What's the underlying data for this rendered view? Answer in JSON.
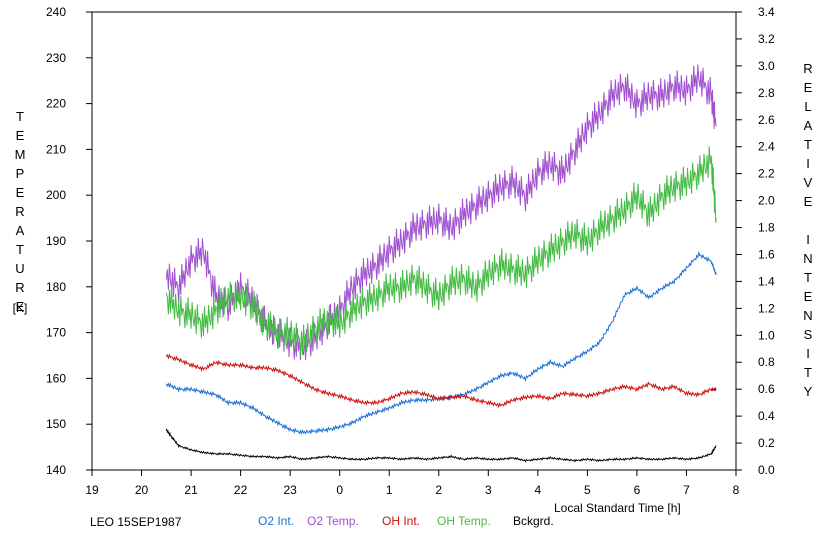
{
  "chart_data": {
    "type": "line",
    "title": "",
    "xlabel": "Local Standard Time [h]",
    "ylabel_left": "TEMPERATURE",
    "ylabel_left_unit": "[K]",
    "ylabel_right": "RELATIVE INTENSITY",
    "x_tick_labels": [
      "19",
      "20",
      "21",
      "22",
      "23",
      "0",
      "1",
      "2",
      "3",
      "4",
      "5",
      "6",
      "7",
      "8"
    ],
    "xlim": [
      19,
      32
    ],
    "ylim_left": [
      140,
      240
    ],
    "yticks_left": [
      140,
      150,
      160,
      170,
      180,
      190,
      200,
      210,
      220,
      230,
      240
    ],
    "ylim_right": [
      0,
      3.4
    ],
    "yticks_right": [
      "0.0",
      "0.2",
      "0.4",
      "0.6",
      "0.8",
      "1.0",
      "1.2",
      "1.4",
      "1.6",
      "1.8",
      "2.0",
      "2.2",
      "2.4",
      "2.6",
      "2.8",
      "3.0",
      "3.2",
      "3.4"
    ],
    "grid": false,
    "legend_position": "bottom",
    "series": [
      {
        "name": "O2 Int.",
        "axis": "right",
        "color": "#1a6fd4",
        "x": [
          20.5,
          20.75,
          21,
          21.25,
          21.5,
          21.75,
          22,
          22.25,
          22.5,
          22.75,
          23,
          23.25,
          23.5,
          23.75,
          24,
          24.25,
          24.5,
          24.75,
          25,
          25.25,
          25.5,
          25.75,
          26,
          26.25,
          26.5,
          26.75,
          27,
          27.25,
          27.5,
          27.75,
          28,
          28.25,
          28.5,
          28.75,
          29,
          29.25,
          29.5,
          29.75,
          30,
          30.25,
          30.5,
          30.75,
          31,
          31.25,
          31.5,
          31.6
        ],
        "values": [
          0.64,
          0.6,
          0.6,
          0.58,
          0.56,
          0.5,
          0.5,
          0.46,
          0.4,
          0.35,
          0.3,
          0.28,
          0.29,
          0.3,
          0.32,
          0.35,
          0.4,
          0.43,
          0.46,
          0.5,
          0.52,
          0.52,
          0.53,
          0.54,
          0.56,
          0.6,
          0.65,
          0.7,
          0.72,
          0.68,
          0.75,
          0.8,
          0.77,
          0.83,
          0.88,
          0.95,
          1.1,
          1.3,
          1.35,
          1.28,
          1.35,
          1.4,
          1.5,
          1.6,
          1.55,
          1.45
        ]
      },
      {
        "name": "O2 Temp.",
        "axis": "left",
        "color": "#a050d0",
        "x": [
          20.5,
          20.75,
          21,
          21.25,
          21.5,
          21.75,
          22,
          22.25,
          22.5,
          22.75,
          23,
          23.25,
          23.5,
          23.75,
          24,
          24.25,
          24.5,
          24.75,
          25,
          25.25,
          25.5,
          25.75,
          26,
          26.25,
          26.5,
          26.75,
          27,
          27.25,
          27.5,
          27.75,
          28,
          28.25,
          28.5,
          28.75,
          29,
          29.25,
          29.5,
          29.75,
          30,
          30.25,
          30.5,
          30.75,
          31,
          31.25,
          31.5,
          31.6
        ],
        "values": [
          183,
          180,
          186,
          188,
          178,
          176,
          180,
          177,
          172,
          170,
          168,
          167,
          169,
          172,
          175,
          180,
          183,
          185,
          188,
          190,
          193,
          194,
          195,
          193,
          196,
          198,
          200,
          202,
          203,
          200,
          205,
          207,
          205,
          210,
          215,
          218,
          222,
          224,
          220,
          222,
          222,
          224,
          223,
          226,
          222,
          215
        ]
      },
      {
        "name": "OH Int.",
        "axis": "right",
        "color": "#cc1111",
        "x": [
          20.5,
          20.75,
          21,
          21.25,
          21.5,
          21.75,
          22,
          22.25,
          22.5,
          22.75,
          23,
          23.25,
          23.5,
          23.75,
          24,
          24.25,
          24.5,
          24.75,
          25,
          25.25,
          25.5,
          25.75,
          26,
          26.25,
          26.5,
          26.75,
          27,
          27.25,
          27.5,
          27.75,
          28,
          28.25,
          28.5,
          28.75,
          29,
          29.25,
          29.5,
          29.75,
          30,
          30.25,
          30.5,
          30.75,
          31,
          31.25,
          31.5,
          31.6
        ],
        "values": [
          0.85,
          0.82,
          0.78,
          0.75,
          0.8,
          0.78,
          0.78,
          0.76,
          0.76,
          0.74,
          0.7,
          0.65,
          0.6,
          0.57,
          0.55,
          0.52,
          0.5,
          0.5,
          0.53,
          0.57,
          0.58,
          0.56,
          0.53,
          0.54,
          0.55,
          0.52,
          0.5,
          0.48,
          0.52,
          0.54,
          0.55,
          0.53,
          0.57,
          0.56,
          0.55,
          0.57,
          0.6,
          0.62,
          0.6,
          0.64,
          0.6,
          0.62,
          0.57,
          0.56,
          0.6,
          0.6
        ]
      },
      {
        "name": "OH Temp.",
        "axis": "left",
        "color": "#44bb44",
        "x": [
          20.5,
          20.75,
          21,
          21.25,
          21.5,
          21.75,
          22,
          22.25,
          22.5,
          22.75,
          23,
          23.25,
          23.5,
          23.75,
          24,
          24.25,
          24.5,
          24.75,
          25,
          25.25,
          25.5,
          25.75,
          26,
          26.25,
          26.5,
          26.75,
          27,
          27.25,
          27.5,
          27.75,
          28,
          28.25,
          28.5,
          28.75,
          29,
          29.25,
          29.5,
          29.75,
          30,
          30.25,
          30.5,
          30.75,
          31,
          31.25,
          31.5,
          31.6
        ],
        "values": [
          178,
          175,
          174,
          172,
          175,
          178,
          178,
          176,
          172,
          170,
          170,
          168,
          171,
          173,
          172,
          175,
          177,
          178,
          180,
          180,
          182,
          180,
          178,
          181,
          182,
          180,
          183,
          185,
          184,
          183,
          186,
          188,
          190,
          192,
          190,
          193,
          195,
          197,
          200,
          196,
          200,
          202,
          203,
          205,
          208,
          195
        ]
      },
      {
        "name": "Bckgrd.",
        "axis": "right",
        "color": "#000000",
        "x": [
          20.5,
          20.6,
          20.75,
          21,
          21.25,
          21.5,
          21.75,
          22,
          22.25,
          22.5,
          22.75,
          23,
          23.25,
          23.5,
          23.75,
          24,
          24.25,
          24.5,
          24.75,
          25,
          25.25,
          25.5,
          25.75,
          26,
          26.25,
          26.5,
          26.75,
          27,
          27.25,
          27.5,
          27.75,
          28,
          28.25,
          28.5,
          28.75,
          29,
          29.25,
          29.5,
          29.75,
          30,
          30.25,
          30.5,
          30.75,
          31,
          31.25,
          31.5,
          31.6
        ],
        "values": [
          0.3,
          0.25,
          0.18,
          0.15,
          0.13,
          0.12,
          0.12,
          0.11,
          0.1,
          0.1,
          0.09,
          0.1,
          0.08,
          0.09,
          0.1,
          0.09,
          0.08,
          0.08,
          0.09,
          0.09,
          0.08,
          0.09,
          0.08,
          0.09,
          0.1,
          0.08,
          0.09,
          0.08,
          0.08,
          0.09,
          0.07,
          0.08,
          0.09,
          0.08,
          0.07,
          0.08,
          0.07,
          0.08,
          0.08,
          0.09,
          0.08,
          0.08,
          0.09,
          0.08,
          0.09,
          0.12,
          0.18
        ]
      }
    ]
  },
  "footer": {
    "station_label": "LEO 15SEP1987"
  }
}
